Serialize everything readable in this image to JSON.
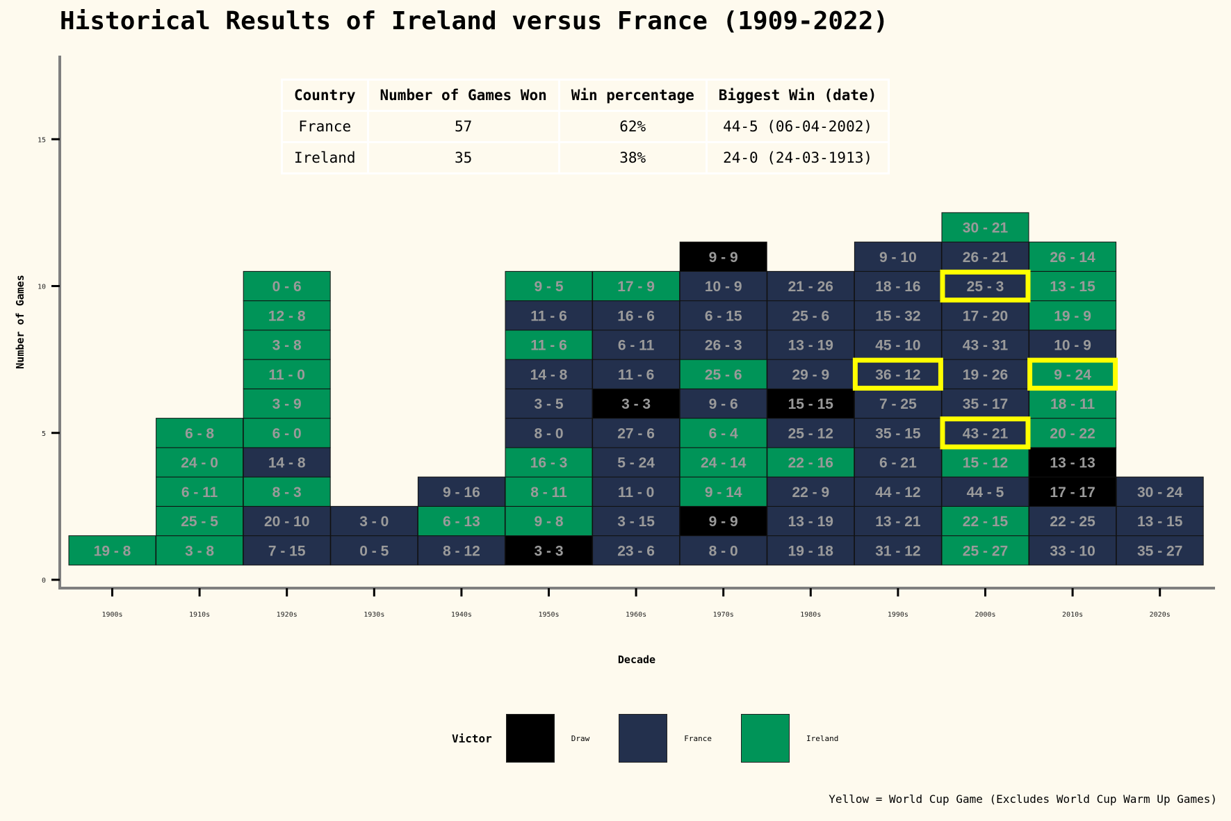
{
  "title": "Historical Results of Ireland versus France (1909-2022)",
  "colors": {
    "France": "#23304d",
    "Ireland": "#009458",
    "Draw": "#000000",
    "highlight": "#ffff00",
    "axis": "#7f7f7f",
    "background": "#fefaee"
  },
  "table": {
    "headers": [
      "Country",
      "Number of Games Won",
      "Win percentage",
      "Biggest Win (date)"
    ],
    "rows": [
      [
        "France",
        "57",
        "62%",
        "44-5 (06-04-2002)"
      ],
      [
        "Ireland",
        "35",
        "38%",
        "24-0 (24-03-1913)"
      ]
    ]
  },
  "legend": {
    "title": "Victor",
    "items": [
      {
        "label": "Draw",
        "winner": "Draw"
      },
      {
        "label": "France",
        "winner": "France"
      },
      {
        "label": "Ireland",
        "winner": "Ireland"
      }
    ]
  },
  "footnote": "Yellow = World Cup Game (Excludes World Cup Warm Up Games)",
  "chart_data": {
    "type": "stacked tile chart",
    "title": "Historical Results of Ireland versus France (1909-2022)",
    "xlabel": "Decade",
    "ylabel": "Number of Games",
    "ylim": [
      0,
      16
    ],
    "yticks": [
      0,
      5,
      10,
      15
    ],
    "grid": false,
    "categories": [
      "1900s",
      "1910s",
      "1920s",
      "1930s",
      "1940s",
      "1950s",
      "1960s",
      "1970s",
      "1980s",
      "1990s",
      "2000s",
      "2010s",
      "2020s"
    ],
    "columns": [
      {
        "decade": "1900s",
        "games": [
          {
            "score": "19 - 8",
            "winner": "Ireland"
          }
        ]
      },
      {
        "decade": "1910s",
        "games": [
          {
            "score": "3 - 8",
            "winner": "Ireland"
          },
          {
            "score": "25 - 5",
            "winner": "Ireland"
          },
          {
            "score": "6 - 11",
            "winner": "Ireland"
          },
          {
            "score": "24 - 0",
            "winner": "Ireland"
          },
          {
            "score": "6 - 8",
            "winner": "Ireland"
          }
        ]
      },
      {
        "decade": "1920s",
        "games": [
          {
            "score": "7 - 15",
            "winner": "France"
          },
          {
            "score": "20 - 10",
            "winner": "France"
          },
          {
            "score": "8 - 3",
            "winner": "Ireland"
          },
          {
            "score": "14 - 8",
            "winner": "France"
          },
          {
            "score": "6 - 0",
            "winner": "Ireland"
          },
          {
            "score": "3 - 9",
            "winner": "Ireland"
          },
          {
            "score": "11 - 0",
            "winner": "Ireland"
          },
          {
            "score": "3 - 8",
            "winner": "Ireland"
          },
          {
            "score": "12 - 8",
            "winner": "Ireland"
          },
          {
            "score": "0 - 6",
            "winner": "Ireland"
          }
        ]
      },
      {
        "decade": "1930s",
        "games": [
          {
            "score": "0 - 5",
            "winner": "France"
          },
          {
            "score": "3 - 0",
            "winner": "France"
          }
        ]
      },
      {
        "decade": "1940s",
        "games": [
          {
            "score": "8 - 12",
            "winner": "France"
          },
          {
            "score": "6 - 13",
            "winner": "Ireland"
          },
          {
            "score": "9 - 16",
            "winner": "France"
          }
        ]
      },
      {
        "decade": "1950s",
        "games": [
          {
            "score": "3 - 3",
            "winner": "Draw"
          },
          {
            "score": "9 - 8",
            "winner": "Ireland"
          },
          {
            "score": "8 - 11",
            "winner": "Ireland"
          },
          {
            "score": "16 - 3",
            "winner": "Ireland"
          },
          {
            "score": "8 - 0",
            "winner": "France"
          },
          {
            "score": "3 - 5",
            "winner": "France"
          },
          {
            "score": "14 - 8",
            "winner": "France"
          },
          {
            "score": "11 - 6",
            "winner": "Ireland"
          },
          {
            "score": "11 - 6",
            "winner": "France"
          },
          {
            "score": "9 - 5",
            "winner": "Ireland"
          }
        ]
      },
      {
        "decade": "1960s",
        "games": [
          {
            "score": "23 - 6",
            "winner": "France"
          },
          {
            "score": "3 - 15",
            "winner": "France"
          },
          {
            "score": "11 - 0",
            "winner": "France"
          },
          {
            "score": "5 - 24",
            "winner": "France"
          },
          {
            "score": "27 - 6",
            "winner": "France"
          },
          {
            "score": "3 - 3",
            "winner": "Draw"
          },
          {
            "score": "11 - 6",
            "winner": "France"
          },
          {
            "score": "6 - 11",
            "winner": "France"
          },
          {
            "score": "16 - 6",
            "winner": "France"
          },
          {
            "score": "17 - 9",
            "winner": "Ireland"
          }
        ]
      },
      {
        "decade": "1970s",
        "games": [
          {
            "score": "8 - 0",
            "winner": "France"
          },
          {
            "score": "9 - 9",
            "winner": "Draw"
          },
          {
            "score": "9 - 14",
            "winner": "Ireland"
          },
          {
            "score": "24 - 14",
            "winner": "Ireland"
          },
          {
            "score": "6 - 4",
            "winner": "Ireland"
          },
          {
            "score": "9 - 6",
            "winner": "France"
          },
          {
            "score": "25 - 6",
            "winner": "Ireland"
          },
          {
            "score": "26 - 3",
            "winner": "France"
          },
          {
            "score": "6 - 15",
            "winner": "France"
          },
          {
            "score": "10 - 9",
            "winner": "France"
          },
          {
            "score": "9 - 9",
            "winner": "Draw"
          }
        ]
      },
      {
        "decade": "1980s",
        "games": [
          {
            "score": "19 - 18",
            "winner": "France"
          },
          {
            "score": "13 - 19",
            "winner": "France"
          },
          {
            "score": "22 - 9",
            "winner": "France"
          },
          {
            "score": "22 - 16",
            "winner": "Ireland"
          },
          {
            "score": "25 - 12",
            "winner": "France"
          },
          {
            "score": "15 - 15",
            "winner": "Draw"
          },
          {
            "score": "29 - 9",
            "winner": "France"
          },
          {
            "score": "13 - 19",
            "winner": "France"
          },
          {
            "score": "25 - 6",
            "winner": "France"
          },
          {
            "score": "21 - 26",
            "winner": "France"
          }
        ]
      },
      {
        "decade": "1990s",
        "games": [
          {
            "score": "31 - 12",
            "winner": "France"
          },
          {
            "score": "13 - 21",
            "winner": "France"
          },
          {
            "score": "44 - 12",
            "winner": "France"
          },
          {
            "score": "6 - 21",
            "winner": "France"
          },
          {
            "score": "35 - 15",
            "winner": "France"
          },
          {
            "score": "7 - 25",
            "winner": "France"
          },
          {
            "score": "36 - 12",
            "winner": "France",
            "world_cup": true
          },
          {
            "score": "45 - 10",
            "winner": "France"
          },
          {
            "score": "15 - 32",
            "winner": "France"
          },
          {
            "score": "18 - 16",
            "winner": "France"
          },
          {
            "score": "9 - 10",
            "winner": "France"
          }
        ]
      },
      {
        "decade": "2000s",
        "games": [
          {
            "score": "25 - 27",
            "winner": "Ireland"
          },
          {
            "score": "22 - 15",
            "winner": "Ireland"
          },
          {
            "score": "44 - 5",
            "winner": "France"
          },
          {
            "score": "15 - 12",
            "winner": "Ireland"
          },
          {
            "score": "43 - 21",
            "winner": "France",
            "world_cup": true
          },
          {
            "score": "35 - 17",
            "winner": "France"
          },
          {
            "score": "19 - 26",
            "winner": "France"
          },
          {
            "score": "43 - 31",
            "winner": "France"
          },
          {
            "score": "17 - 20",
            "winner": "France"
          },
          {
            "score": "25 - 3",
            "winner": "France",
            "world_cup": true
          },
          {
            "score": "26 - 21",
            "winner": "France"
          },
          {
            "score": "30 - 21",
            "winner": "Ireland"
          }
        ]
      },
      {
        "decade": "2010s",
        "games": [
          {
            "score": "33 - 10",
            "winner": "France"
          },
          {
            "score": "22 - 25",
            "winner": "France"
          },
          {
            "score": "17 - 17",
            "winner": "Draw"
          },
          {
            "score": "13 - 13",
            "winner": "Draw"
          },
          {
            "score": "20 - 22",
            "winner": "Ireland"
          },
          {
            "score": "18 - 11",
            "winner": "Ireland"
          },
          {
            "score": "9 - 24",
            "winner": "Ireland",
            "world_cup": true
          },
          {
            "score": "10 - 9",
            "winner": "France"
          },
          {
            "score": "19 - 9",
            "winner": "Ireland"
          },
          {
            "score": "13 - 15",
            "winner": "Ireland"
          },
          {
            "score": "26 - 14",
            "winner": "Ireland"
          }
        ]
      },
      {
        "decade": "2020s",
        "games": [
          {
            "score": "35 - 27",
            "winner": "France"
          },
          {
            "score": "13 - 15",
            "winner": "France"
          },
          {
            "score": "30 - 24",
            "winner": "France"
          }
        ]
      }
    ]
  }
}
